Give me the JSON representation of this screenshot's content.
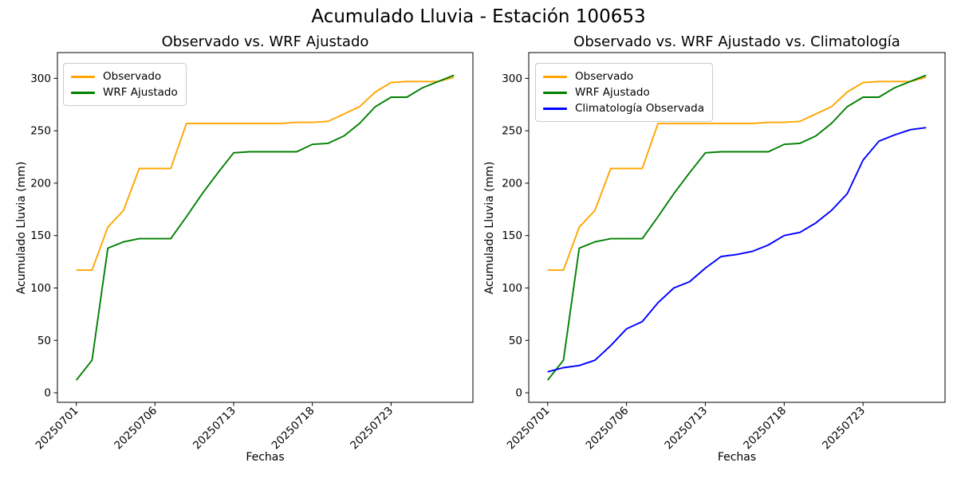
{
  "figure": {
    "suptitle": "Acumulado Lluvia - Estación 100653"
  },
  "chart_data": [
    {
      "type": "line",
      "title": "Observado vs. WRF Ajustado",
      "xlabel": "Fechas",
      "ylabel": "Acumulado Lluvia (mm)",
      "x_tick_labels": [
        "20250701",
        "20250706",
        "20250713",
        "20250718",
        "20250723"
      ],
      "x_tick_indices": [
        0,
        5,
        10,
        15,
        20
      ],
      "y_ticks": [
        0,
        50,
        100,
        150,
        200,
        250,
        300
      ],
      "n_points": 25,
      "ylim": [
        -9,
        325
      ],
      "grid": false,
      "legend_position": "upper left",
      "series": [
        {
          "name": "Observado",
          "color": "#FFA500",
          "values": [
            117,
            117,
            158,
            174,
            214,
            214,
            214,
            257,
            257,
            257,
            257,
            257,
            257,
            257,
            258,
            258,
            259,
            266,
            273,
            287,
            296,
            297,
            297,
            297,
            301
          ]
        },
        {
          "name": "WRF Ajustado",
          "color": "#008000",
          "values": [
            12,
            31,
            138,
            144,
            147,
            147,
            147,
            168,
            190,
            210,
            229,
            230,
            230,
            230,
            230,
            237,
            238,
            245,
            257,
            273,
            282,
            282,
            291,
            297,
            303
          ]
        }
      ]
    },
    {
      "type": "line",
      "title": "Observado vs. WRF Ajustado vs. Climatología",
      "xlabel": "Fechas",
      "ylabel": "Acumulado Lluvia (mm)",
      "x_tick_labels": [
        "20250701",
        "20250706",
        "20250713",
        "20250718",
        "20250723"
      ],
      "x_tick_indices": [
        0,
        5,
        10,
        15,
        20
      ],
      "y_ticks": [
        0,
        50,
        100,
        150,
        200,
        250,
        300
      ],
      "n_points": 25,
      "ylim": [
        -9,
        325
      ],
      "grid": false,
      "legend_position": "upper left",
      "series": [
        {
          "name": "Observado",
          "color": "#FFA500",
          "values": [
            117,
            117,
            158,
            174,
            214,
            214,
            214,
            257,
            257,
            257,
            257,
            257,
            257,
            257,
            258,
            258,
            259,
            266,
            273,
            287,
            296,
            297,
            297,
            297,
            301
          ]
        },
        {
          "name": "WRF Ajustado",
          "color": "#008000",
          "values": [
            12,
            31,
            138,
            144,
            147,
            147,
            147,
            168,
            190,
            210,
            229,
            230,
            230,
            230,
            230,
            237,
            238,
            245,
            257,
            273,
            282,
            282,
            291,
            297,
            303
          ]
        },
        {
          "name": "Climatología Observada",
          "color": "#0000FF",
          "values": [
            20,
            24,
            26,
            31,
            45,
            61,
            68,
            86,
            100,
            106,
            119,
            130,
            132,
            135,
            141,
            150,
            153,
            162,
            174,
            190,
            222,
            240,
            246,
            251,
            253
          ]
        }
      ]
    }
  ]
}
